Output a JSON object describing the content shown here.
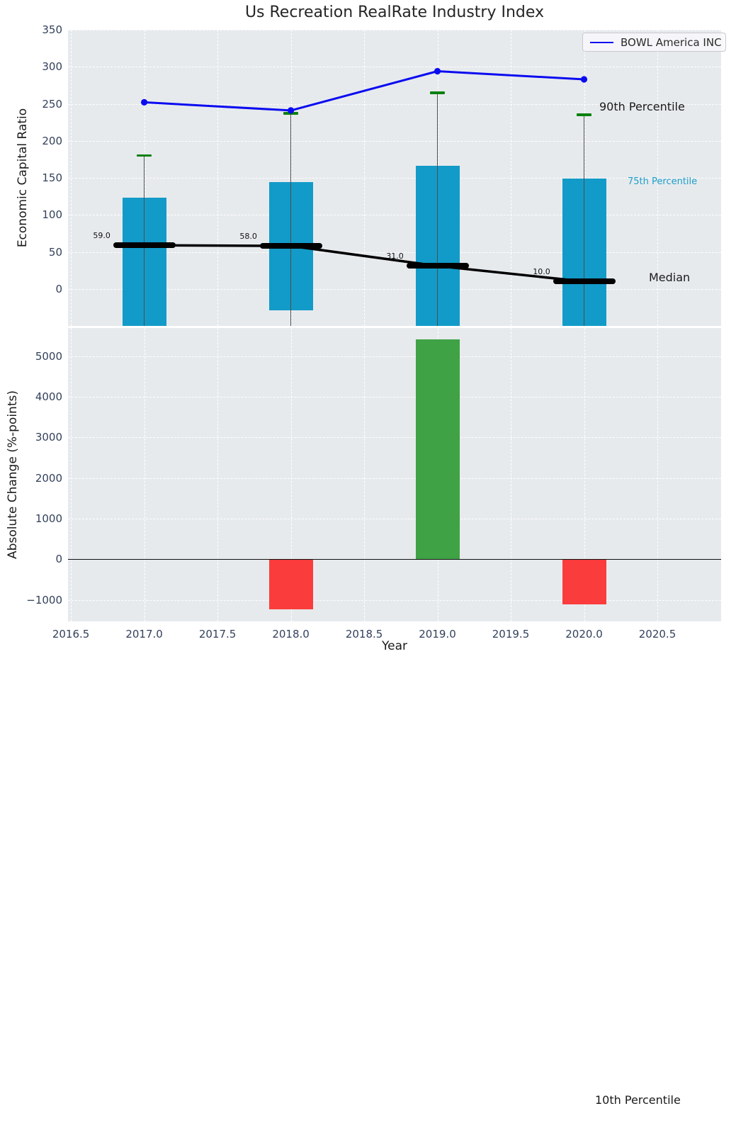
{
  "figure_title": "Us Recreation RealRate Industry Index",
  "legend": {
    "label": "BOWL America INC"
  },
  "annotations": [
    {
      "id": "p90",
      "text": "90th Percentile",
      "color": "#1a1a1a"
    },
    {
      "id": "p75",
      "text": "75th Percentile",
      "color": "#1d9fca"
    },
    {
      "id": "median",
      "text": "Median",
      "color": "#1a1a1a"
    },
    {
      "id": "p10",
      "text": "10th Percentile",
      "color": "#1a1a1a"
    }
  ],
  "colors": {
    "plot_background": "#e7eaed",
    "grid": "#ffffff",
    "company_line_blue": "#0b0bf0",
    "percentile_bar_cyan": "#129bc9",
    "whisker_cap_green": "#0b800f",
    "whisker_line_gray": "#4d4d4d",
    "median_black": "#000000",
    "positive_bar_green": "#3fa245",
    "negative_bar_red": "#fa3c3c",
    "tick_text": "#33415c"
  },
  "chart_data": [
    {
      "type": "combo-line-bar-errorbar",
      "title": "Us Recreation RealRate Industry Index",
      "ylabel": "Economic Capital Ratio",
      "xlim": [
        2016.48,
        2020.935
      ],
      "ylim": [
        -50,
        350
      ],
      "grid": true,
      "legend_position": "upper-right",
      "yticks": [
        350,
        300,
        250,
        200,
        150,
        100,
        50,
        0
      ],
      "ytick_labels": [
        "350",
        "300",
        "250",
        "200",
        "150",
        "100",
        "50",
        "0"
      ],
      "xticks": [
        2016.5,
        2017.0,
        2017.5,
        2018.0,
        2018.5,
        2019.0,
        2019.5,
        2020.0,
        2020.5
      ],
      "x": [
        2017,
        2018,
        2019,
        2020
      ],
      "series": [
        {
          "name": "BOWL America INC",
          "type": "line",
          "marker": "circle",
          "color": "#0b0bf0",
          "values": [
            252,
            241,
            294,
            283
          ]
        },
        {
          "name": "75th Percentile (bar top)",
          "type": "bar",
          "color": "#129bc9",
          "bar_width_years": 0.3,
          "values": [
            123,
            144,
            166,
            149
          ],
          "bar_bottoms": [
            -50,
            -29,
            -50,
            -50
          ]
        },
        {
          "name": "90th Percentile (whisker cap)",
          "type": "errorbar-cap",
          "color": "#0b800f",
          "values": [
            180,
            237,
            265,
            235
          ]
        },
        {
          "name": "Median",
          "type": "line-with-caps",
          "color": "#000000",
          "values": [
            59,
            58,
            31,
            10
          ],
          "labels": [
            "59.0",
            "58.0",
            "31.0",
            "10.0"
          ]
        }
      ]
    },
    {
      "type": "bar",
      "ylabel": "Absolute Change (%-points)",
      "xlabel": "Year",
      "xlim": [
        2016.48,
        2020.935
      ],
      "ylim": [
        -1530,
        5690
      ],
      "grid": true,
      "zero_line": true,
      "yticks": [
        5000,
        4000,
        3000,
        2000,
        1000,
        0,
        -1000
      ],
      "ytick_labels": [
        "5000",
        "4000",
        "3000",
        "2000",
        "1000",
        "0",
        "−1000"
      ],
      "xticks": [
        2016.5,
        2017.0,
        2017.5,
        2018.0,
        2018.5,
        2019.0,
        2019.5,
        2020.0,
        2020.5
      ],
      "xtick_labels": [
        "2016.5",
        "2017.0",
        "2017.5",
        "2018.0",
        "2018.5",
        "2019.0",
        "2019.5",
        "2020.0",
        "2020.5"
      ],
      "x": [
        2018,
        2019,
        2020
      ],
      "values": [
        -1230,
        5410,
        -1120
      ],
      "bar_colors": [
        "#fa3c3c",
        "#3fa245",
        "#fa3c3c"
      ],
      "bar_width_years": 0.3
    }
  ]
}
